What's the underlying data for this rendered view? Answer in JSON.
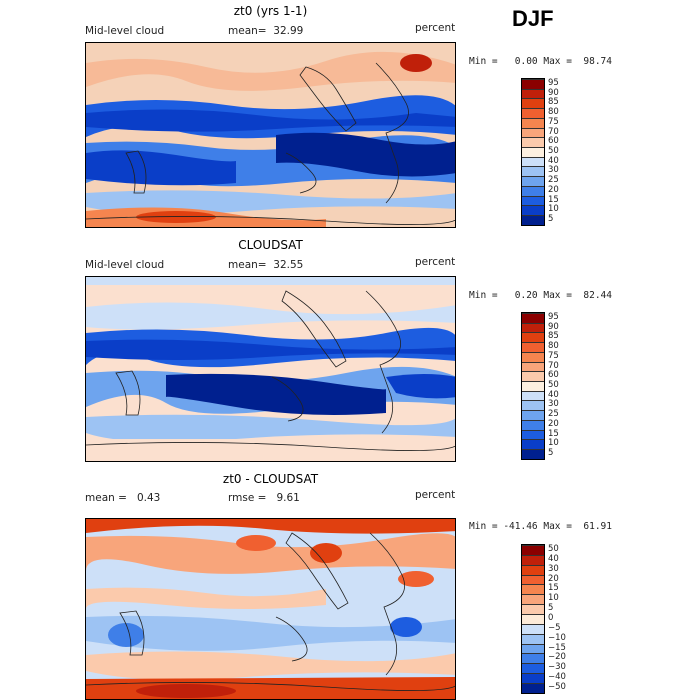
{
  "season": "DJF",
  "panels": [
    {
      "title": "zt0 (yrs 1-1)",
      "variable": "Mid-level cloud",
      "stat_label": "mean=",
      "stat_value": "32.99",
      "units": "percent",
      "minmax": "Min =   0.00 Max =  98.74",
      "levels": [
        "95",
        "90",
        "85",
        "80",
        "75",
        "70",
        "60",
        "50",
        "40",
        "30",
        "25",
        "20",
        "15",
        "10",
        "5"
      ],
      "colors": [
        "#8b0000",
        "#c0200a",
        "#e04010",
        "#f06030",
        "#f5854f",
        "#f8a57b",
        "#fbcaac",
        "#fdf0e0",
        "#cde0f8",
        "#9dc3f3",
        "#6ea4ee",
        "#3f7fe8",
        "#1d5de0",
        "#0a3ec8",
        "#00208f"
      ]
    },
    {
      "title": "CLOUDSAT",
      "variable": "Mid-level cloud",
      "stat_label": "mean=",
      "stat_value": "32.55",
      "units": "percent",
      "minmax": "Min =   0.20 Max =  82.44",
      "levels": [
        "95",
        "90",
        "85",
        "80",
        "75",
        "70",
        "60",
        "50",
        "40",
        "30",
        "25",
        "20",
        "15",
        "10",
        "5"
      ],
      "colors": [
        "#8b0000",
        "#c0200a",
        "#e04010",
        "#f06030",
        "#f5854f",
        "#f8a57b",
        "#fbcaac",
        "#fdf0e0",
        "#cde0f8",
        "#9dc3f3",
        "#6ea4ee",
        "#3f7fe8",
        "#1d5de0",
        "#0a3ec8",
        "#00208f"
      ]
    },
    {
      "title": "zt0 - CLOUDSAT",
      "variable": "mean =",
      "stat_label": "rmse =",
      "variable_value": "0.43",
      "stat_value": "9.61",
      "units": "percent",
      "minmax": "Min = -41.46 Max =  61.91",
      "levels": [
        "50",
        "40",
        "30",
        "20",
        "15",
        "10",
        "5",
        "0",
        "−5",
        "−10",
        "−15",
        "−20",
        "−30",
        "−40",
        "−50"
      ],
      "colors": [
        "#8b0000",
        "#c0200a",
        "#e04010",
        "#f06030",
        "#f5854f",
        "#f8a57b",
        "#fbcaac",
        "#fdebd8",
        "#cde0f8",
        "#9dc3f3",
        "#6ea4ee",
        "#3f7fe8",
        "#1d5de0",
        "#0a3ec8",
        "#00208f"
      ]
    }
  ]
}
